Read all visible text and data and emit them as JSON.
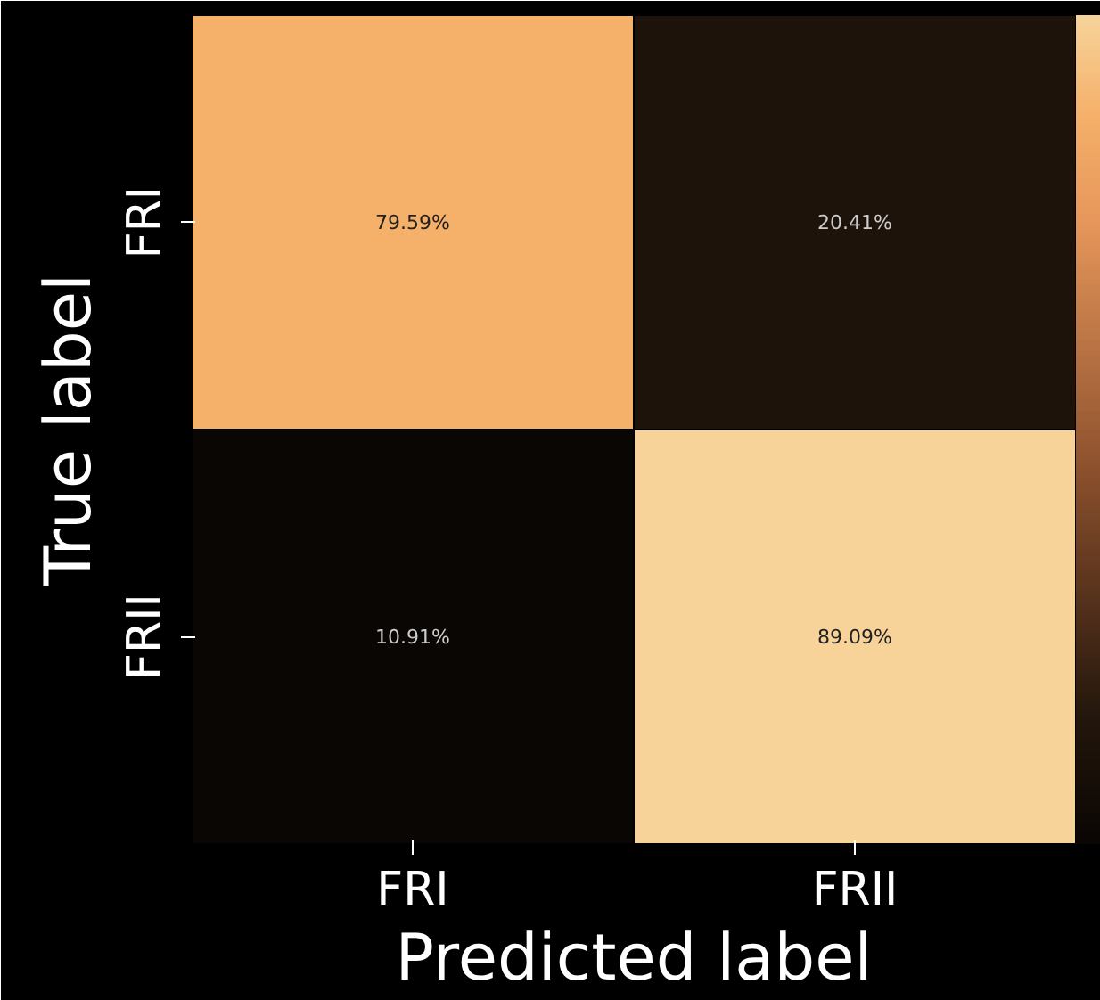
{
  "chart_data": {
    "type": "heatmap",
    "xlabel": "Predicted label",
    "ylabel": "True label",
    "categories": [
      "FRI",
      "FRII"
    ],
    "y_categories": [
      "FRI",
      "FRII"
    ],
    "cells": [
      [
        79.59,
        20.41
      ],
      [
        10.91,
        89.09
      ]
    ],
    "cell_labels": [
      [
        "79.59%",
        "20.41%"
      ],
      [
        "10.91%",
        "89.09%"
      ]
    ]
  }
}
